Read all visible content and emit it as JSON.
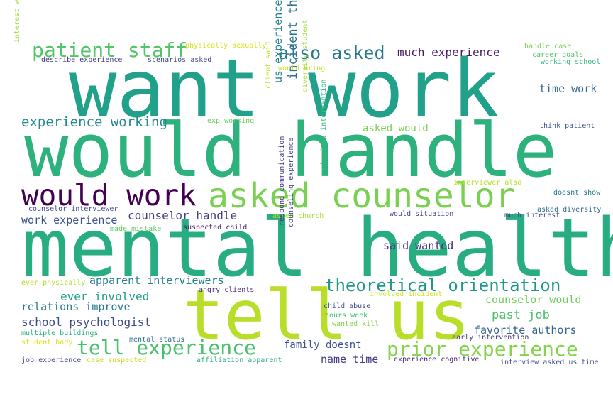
{
  "words": [
    {
      "text": "want work",
      "color": "#21a08a"
    },
    {
      "text": "would handle",
      "color": "#2db27d"
    },
    {
      "text": "mental health",
      "color": "#27ad81"
    },
    {
      "text": "tell us",
      "color": "#b8de29"
    },
    {
      "text": "asked counselor",
      "color": "#7ad151"
    },
    {
      "text": "would work",
      "color": "#440154"
    },
    {
      "text": "patient staff",
      "color": "#52c569"
    },
    {
      "text": "also asked",
      "color": "#2a788e"
    },
    {
      "text": "tell experience",
      "color": "#4ac16d"
    },
    {
      "text": "prior experience",
      "color": "#84d44b"
    },
    {
      "text": "theoretical orientation",
      "color": "#1f988b"
    },
    {
      "text": "experience working",
      "color": "#23898e"
    },
    {
      "text": "much experience",
      "color": "#481a6c"
    },
    {
      "text": "time work",
      "color": "#31688e"
    },
    {
      "text": "incident think",
      "color": "#2c718e"
    },
    {
      "text": "us experience",
      "color": "#26828e"
    },
    {
      "text": "counselor handle",
      "color": "#433e85"
    },
    {
      "text": "work experience",
      "color": "#3b528b"
    },
    {
      "text": "said wanted",
      "color": "#472d7b"
    },
    {
      "text": "apparent interviewers",
      "color": "#277f8e"
    },
    {
      "text": "ever involved",
      "color": "#1f9e89"
    },
    {
      "text": "relations improve",
      "color": "#2a788e"
    },
    {
      "text": "school psychologist",
      "color": "#3e4989"
    },
    {
      "text": "past job",
      "color": "#4ac16d"
    },
    {
      "text": "counselor would",
      "color": "#6ccd5a"
    },
    {
      "text": "favorite authors",
      "color": "#33638d"
    },
    {
      "text": "family doesnt",
      "color": "#3b528b"
    },
    {
      "text": "name time",
      "color": "#433e85"
    },
    {
      "text": "asked would",
      "color": "#7ad151"
    },
    {
      "text": "physically sexually",
      "color": "#d8e219"
    },
    {
      "text": "describe experience",
      "color": "#443983"
    },
    {
      "text": "scenarios asked",
      "color": "#3e4a89"
    },
    {
      "text": "would bring",
      "color": "#c2df23"
    },
    {
      "text": "handle case",
      "color": "#75d054"
    },
    {
      "text": "career goals",
      "color": "#54c568"
    },
    {
      "text": "interest working",
      "color": "#a0da39"
    },
    {
      "text": "exp working",
      "color": "#6ccd5a"
    },
    {
      "text": "client said",
      "color": "#c5e021"
    },
    {
      "text": "diversity student",
      "color": "#a5db36"
    },
    {
      "text": "physical intervention",
      "color": "#35b779"
    },
    {
      "text": "interviewer also",
      "color": "#b5de2b"
    },
    {
      "text": "think patient",
      "color": "#39568c"
    },
    {
      "text": "working school",
      "color": "#32b67a"
    },
    {
      "text": "doesnt show",
      "color": "#287c8e"
    },
    {
      "text": "asked diversity",
      "color": "#31688e"
    },
    {
      "text": "much interest",
      "color": "#424086"
    },
    {
      "text": "would situation",
      "color": "#3f4788"
    },
    {
      "text": "asked church",
      "color": "#a8db34"
    },
    {
      "text": "counselor interviewer",
      "color": "#414487"
    },
    {
      "text": "made mistake",
      "color": "#5ec962"
    },
    {
      "text": "suspected child",
      "color": "#48186a"
    },
    {
      "text": "respond communication",
      "color": "#46337f"
    },
    {
      "text": "counseling experience",
      "color": "#3f4889"
    },
    {
      "text": "ever physically",
      "color": "#b5de2b"
    },
    {
      "text": "angry clients",
      "color": "#4e2d80"
    },
    {
      "text": "involved incident",
      "color": "#d2e21b"
    },
    {
      "text": "child abuse",
      "color": "#3e4a89"
    },
    {
      "text": "hours week",
      "color": "#3dbc74"
    },
    {
      "text": "wanted kill",
      "color": "#7fd34e"
    },
    {
      "text": "multiple buildings",
      "color": "#29af7f"
    },
    {
      "text": "mental status",
      "color": "#2e6f8e"
    },
    {
      "text": "early intervention",
      "color": "#46307e"
    },
    {
      "text": "student body",
      "color": "#dde318"
    },
    {
      "text": "job experience",
      "color": "#414487"
    },
    {
      "text": "case suspected",
      "color": "#c8e020"
    },
    {
      "text": "affiliation apparent",
      "color": "#2db27d"
    },
    {
      "text": "experience cognitive",
      "color": "#482878"
    },
    {
      "text": "interview asked us time",
      "color": "#3b528b"
    }
  ]
}
